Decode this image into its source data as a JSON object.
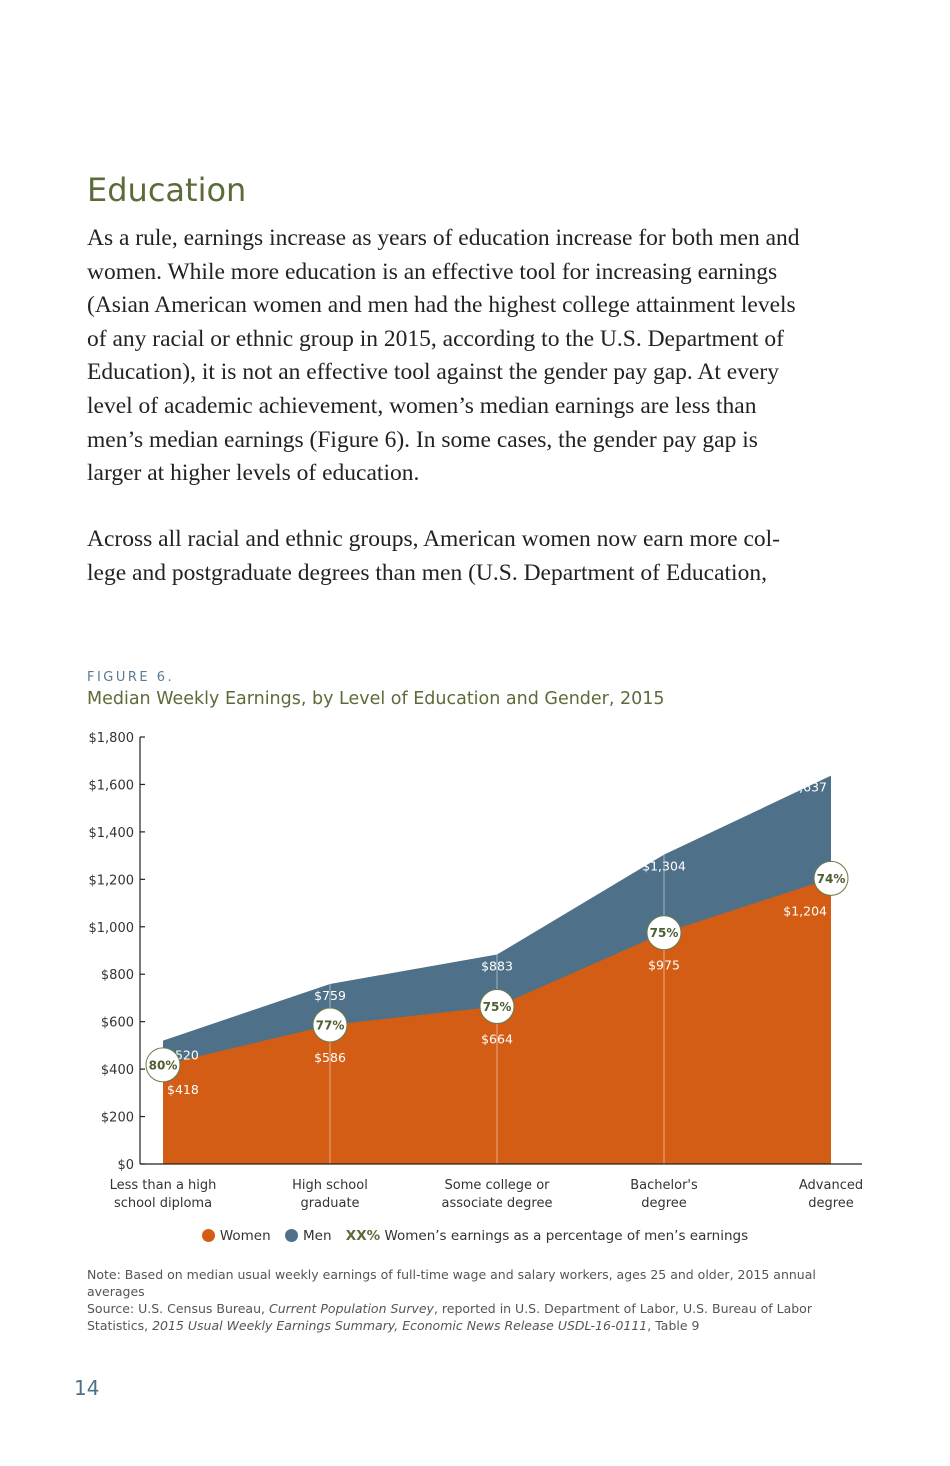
{
  "heading": "Education",
  "paragraphs": [
    {
      "lines": [
        "As a rule, earnings increase as years of  education increase for both men and",
        "women. While more education is an effective tool for increasing earnings",
        "(Asian American women and men had the highest college attainment levels",
        "of  any racial or ethnic group in 2015, according to the U.S. Department of",
        "Education), it is not an effective tool against the gender pay gap. At every",
        "level of  academic achievement, women’s median earnings are less than",
        "men’s median earnings (Figure 6). In some cases, the gender pay gap is",
        "larger at higher levels of  education."
      ]
    },
    {
      "lines": [
        "Across all racial and ethnic groups, American women now earn more col-",
        "lege and postgraduate degrees than men (U.S. Department of  Education,"
      ]
    }
  ],
  "figure": {
    "label": "FIGURE 6.",
    "title": "Median Weekly Earnings, by Level of Education and Gender, 2015"
  },
  "chart_data": {
    "type": "area",
    "title": "Median Weekly Earnings, by Level of Education and Gender, 2015",
    "categories": [
      "Less than a high|school diploma",
      "High school|graduate",
      "Some college or|associate degree",
      "Bachelor's|degree",
      "Advanced|degree"
    ],
    "series": [
      {
        "name": "Men",
        "color": "#4e7189",
        "values": [
          520,
          759,
          883,
          1304,
          1637
        ],
        "labels": [
          "$520",
          "$759",
          "$883",
          "$1,304",
          "$1,637"
        ]
      },
      {
        "name": "Women",
        "color": "#d35d14",
        "values": [
          418,
          586,
          664,
          975,
          1204
        ],
        "labels": [
          "$418",
          "$586",
          "$664",
          "$975",
          "$1,204"
        ]
      }
    ],
    "ratios": [
      "80%",
      "77%",
      "75%",
      "75%",
      "74%"
    ],
    "ylim": [
      0,
      1800
    ],
    "yticks": [
      0,
      200,
      400,
      600,
      800,
      1000,
      1200,
      1400,
      1600,
      1800
    ],
    "ytick_labels": [
      "$0",
      "$200",
      "$400",
      "$600",
      "$800",
      "$1,000",
      "$1,200",
      "$1,400",
      "$1,600",
      "$1,800"
    ],
    "grid": false,
    "legend_position": "bottom"
  },
  "legend": {
    "women": "Women",
    "men": "Men",
    "xx": "XX%",
    "xx_desc": "Women’s earnings as a percentage of men’s earnings"
  },
  "notes": {
    "note": "Note: Based on median usual weekly earnings of full-time wage and salary workers, ages 25 and older, 2015 annual averages",
    "source_prefix": "Source: U.S. Census Bureau, ",
    "source_italic1": "Current Population Survey",
    "source_mid": ", reported in U.S. Department of Labor, U.S. Bureau of Labor Statistics, ",
    "source_italic2": "2015 Usual Weekly Earnings Summary, Economic News Release USDL-16-0111",
    "source_suffix": ", Table 9"
  },
  "page_number": "14",
  "colors": {
    "women": "#d35d14",
    "men": "#4e7189",
    "accent": "#5b6b3a"
  }
}
